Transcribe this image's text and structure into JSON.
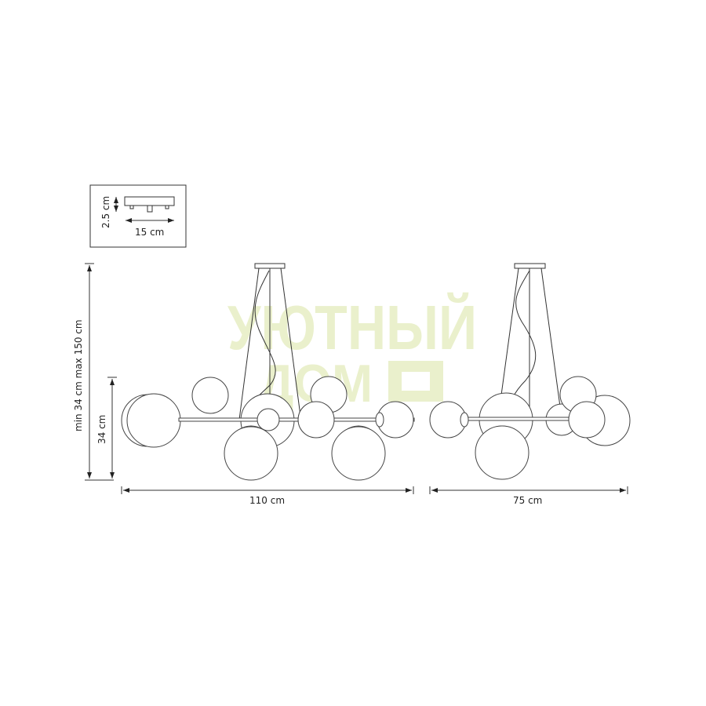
{
  "watermark": {
    "line1": "УЮТНЫЙ",
    "line2": "ДОМ",
    "color": "#eaf0cc"
  },
  "canopy_inset": {
    "height_label": "2.5 cm",
    "width_label": "15 cm"
  },
  "front_view": {
    "total_height_label": "min 34 cm max 150 cm",
    "body_height_label": "34 cm",
    "width_label": "110 cm"
  },
  "side_view": {
    "width_label": "75 cm"
  }
}
